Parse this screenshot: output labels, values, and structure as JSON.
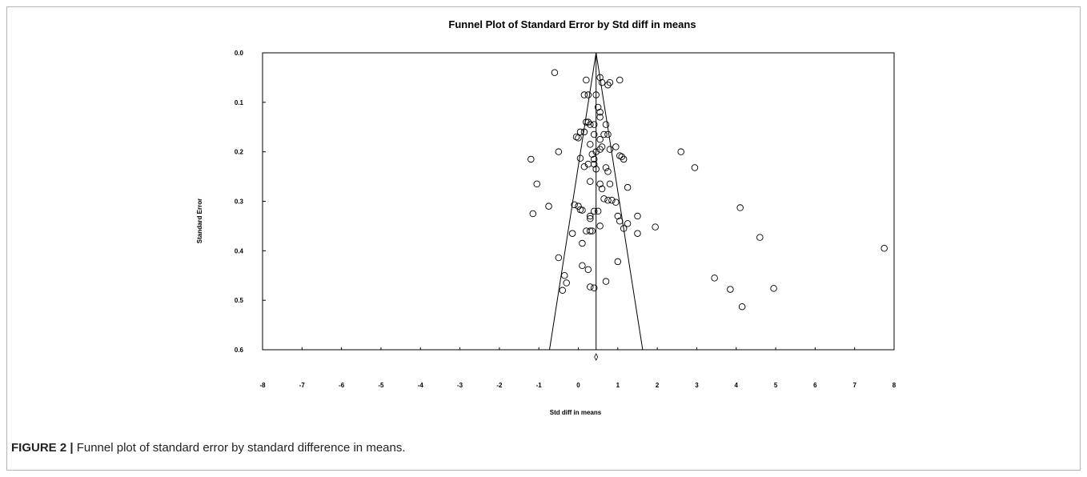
{
  "chart_data": {
    "type": "scatter",
    "title": "Funnel Plot of Standard Error by Std diff in means",
    "xlabel": "Std diff in means",
    "ylabel": "Standard Error",
    "xlim": [
      -8,
      8
    ],
    "ylim": [
      0.0,
      0.6
    ],
    "y_inverted": true,
    "x_ticks": [
      -8,
      -7,
      -6,
      -5,
      -4,
      -3,
      -2,
      -1,
      0,
      1,
      2,
      3,
      4,
      5,
      6,
      7,
      8
    ],
    "y_ticks": [
      0.0,
      0.1,
      0.2,
      0.3,
      0.4,
      0.5,
      0.6
    ],
    "y_tick_labels": [
      "0.0",
      "0.1",
      "0.2",
      "0.3",
      "0.4",
      "0.5",
      "0.6"
    ],
    "grid": false,
    "combined_effect": 0.45,
    "funnel": {
      "apex": [
        0.45,
        0.0
      ],
      "base_left": [
        -0.73,
        0.6
      ],
      "base_right": [
        1.63,
        0.6
      ]
    },
    "marker": "open-circle",
    "summary_marker": "diamond",
    "points": [
      [
        -0.6,
        0.04
      ],
      [
        0.2,
        0.055
      ],
      [
        0.55,
        0.05
      ],
      [
        0.6,
        0.06
      ],
      [
        0.8,
        0.06
      ],
      [
        0.75,
        0.065
      ],
      [
        1.05,
        0.055
      ],
      [
        0.15,
        0.085
      ],
      [
        0.25,
        0.085
      ],
      [
        0.45,
        0.085
      ],
      [
        0.5,
        0.11
      ],
      [
        0.55,
        0.12
      ],
      [
        0.55,
        0.13
      ],
      [
        0.2,
        0.14
      ],
      [
        0.25,
        0.14
      ],
      [
        0.3,
        0.145
      ],
      [
        0.4,
        0.145
      ],
      [
        0.7,
        0.145
      ],
      [
        0.05,
        0.16
      ],
      [
        0.15,
        0.16
      ],
      [
        0.4,
        0.165
      ],
      [
        0.65,
        0.165
      ],
      [
        0.75,
        0.165
      ],
      [
        -0.05,
        0.17
      ],
      [
        0.0,
        0.172
      ],
      [
        0.55,
        0.175
      ],
      [
        0.3,
        0.185
      ],
      [
        0.6,
        0.19
      ],
      [
        0.95,
        0.19
      ],
      [
        -0.5,
        0.2
      ],
      [
        0.45,
        0.2
      ],
      [
        0.55,
        0.195
      ],
      [
        0.8,
        0.195
      ],
      [
        0.35,
        0.205
      ],
      [
        1.05,
        0.208
      ],
      [
        1.1,
        0.21
      ],
      [
        1.15,
        0.215
      ],
      [
        -1.2,
        0.215
      ],
      [
        0.05,
        0.213
      ],
      [
        0.4,
        0.215
      ],
      [
        0.4,
        0.225
      ],
      [
        0.15,
        0.23
      ],
      [
        0.7,
        0.232
      ],
      [
        0.45,
        0.235
      ],
      [
        0.75,
        0.24
      ],
      [
        0.25,
        0.225
      ],
      [
        0.3,
        0.26
      ],
      [
        0.55,
        0.265
      ],
      [
        0.8,
        0.265
      ],
      [
        1.25,
        0.272
      ],
      [
        -1.05,
        0.265
      ],
      [
        0.6,
        0.275
      ],
      [
        0.65,
        0.295
      ],
      [
        0.75,
        0.298
      ],
      [
        0.85,
        0.298
      ],
      [
        0.95,
        0.302
      ],
      [
        -0.1,
        0.307
      ],
      [
        0.0,
        0.31
      ],
      [
        0.05,
        0.317
      ],
      [
        0.1,
        0.318
      ],
      [
        0.4,
        0.32
      ],
      [
        0.5,
        0.32
      ],
      [
        -0.75,
        0.31
      ],
      [
        -1.15,
        0.325
      ],
      [
        0.3,
        0.33
      ],
      [
        0.3,
        0.335
      ],
      [
        1.0,
        0.33
      ],
      [
        1.05,
        0.34
      ],
      [
        1.5,
        0.33
      ],
      [
        1.25,
        0.345
      ],
      [
        0.55,
        0.35
      ],
      [
        1.15,
        0.355
      ],
      [
        0.2,
        0.36
      ],
      [
        0.35,
        0.36
      ],
      [
        0.3,
        0.36
      ],
      [
        -0.15,
        0.365
      ],
      [
        1.5,
        0.365
      ],
      [
        1.95,
        0.352
      ],
      [
        0.1,
        0.385
      ],
      [
        -0.5,
        0.414
      ],
      [
        1.0,
        0.422
      ],
      [
        0.1,
        0.43
      ],
      [
        0.25,
        0.438
      ],
      [
        -0.35,
        0.45
      ],
      [
        -0.3,
        0.465
      ],
      [
        0.7,
        0.462
      ],
      [
        0.3,
        0.473
      ],
      [
        0.4,
        0.475
      ],
      [
        -0.4,
        0.48
      ],
      [
        2.6,
        0.2
      ],
      [
        2.95,
        0.232
      ],
      [
        4.1,
        0.313
      ],
      [
        4.6,
        0.373
      ],
      [
        7.75,
        0.395
      ],
      [
        3.45,
        0.455
      ],
      [
        3.85,
        0.478
      ],
      [
        4.95,
        0.476
      ],
      [
        4.15,
        0.513
      ]
    ]
  },
  "caption": {
    "label": "FIGURE 2 |",
    "text": " Funnel plot of standard error by standard difference in means."
  }
}
